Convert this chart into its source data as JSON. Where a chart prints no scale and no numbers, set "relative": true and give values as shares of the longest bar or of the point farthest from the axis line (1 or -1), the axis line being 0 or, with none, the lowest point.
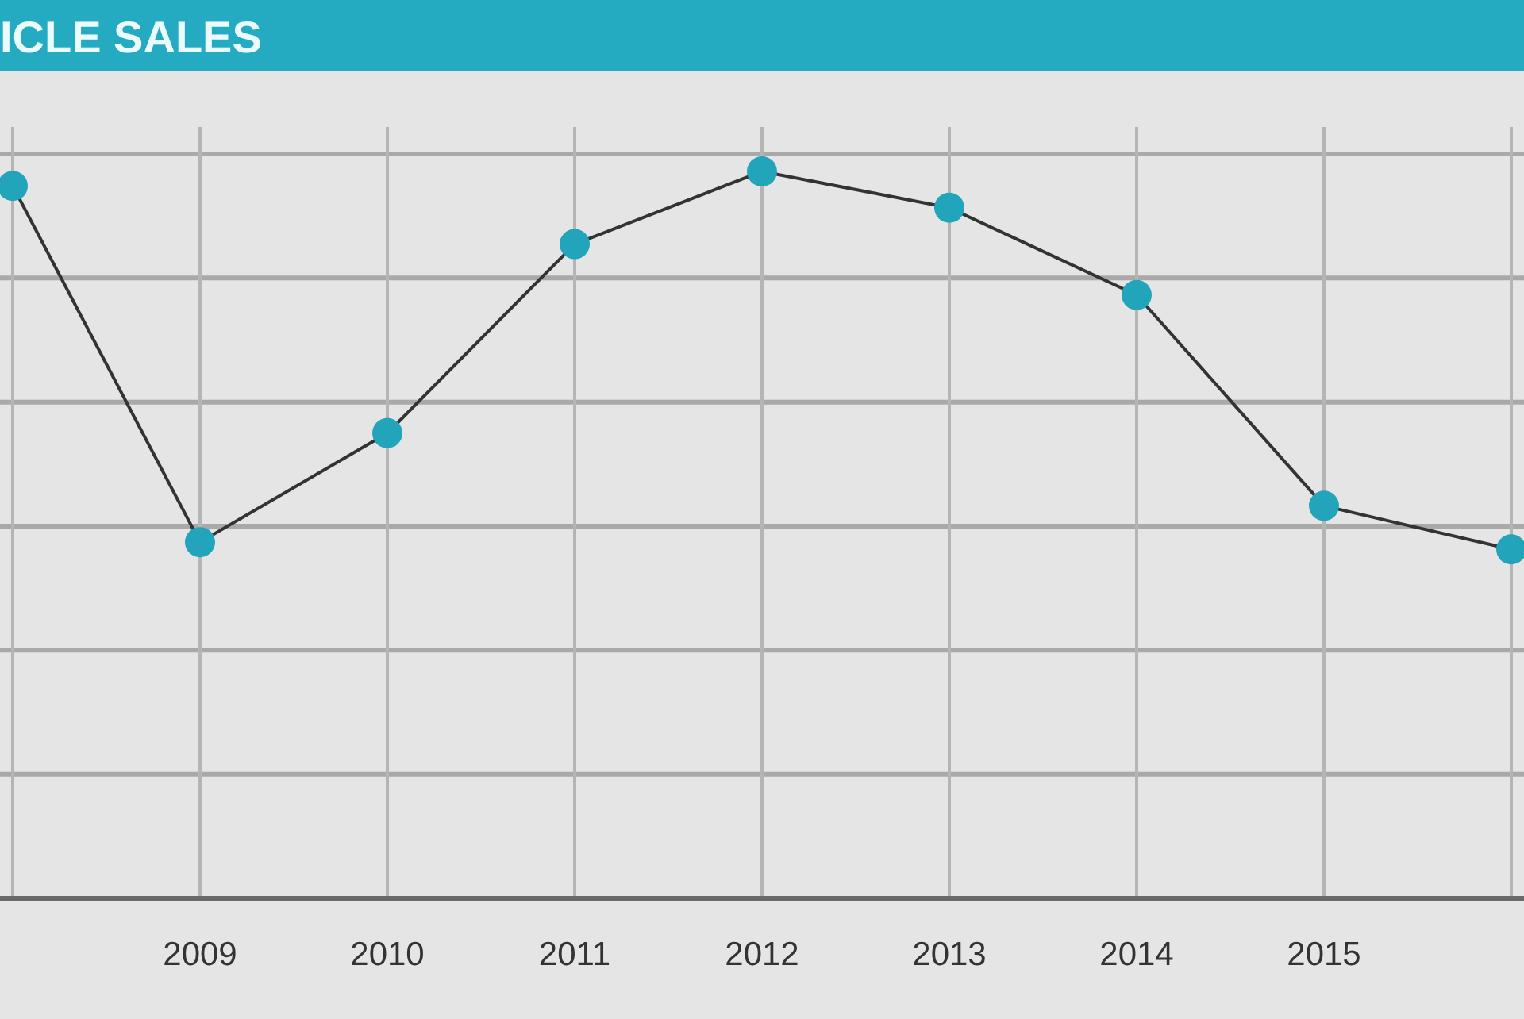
{
  "chart_data": {
    "type": "line",
    "title": "ICLE SALES",
    "relative": true,
    "grid": true,
    "marker": "circle",
    "line_style": "solid",
    "categories": [
      null,
      "2009",
      "2010",
      "2011",
      "2012",
      "2013",
      "2014",
      "2015",
      null
    ],
    "series": [
      {
        "color": "#22a4bb",
        "values": [
          0.98,
          0.49,
          0.64,
          0.9,
          1,
          0.95,
          0.83,
          0.54,
          0.48
        ]
      }
    ]
  }
}
